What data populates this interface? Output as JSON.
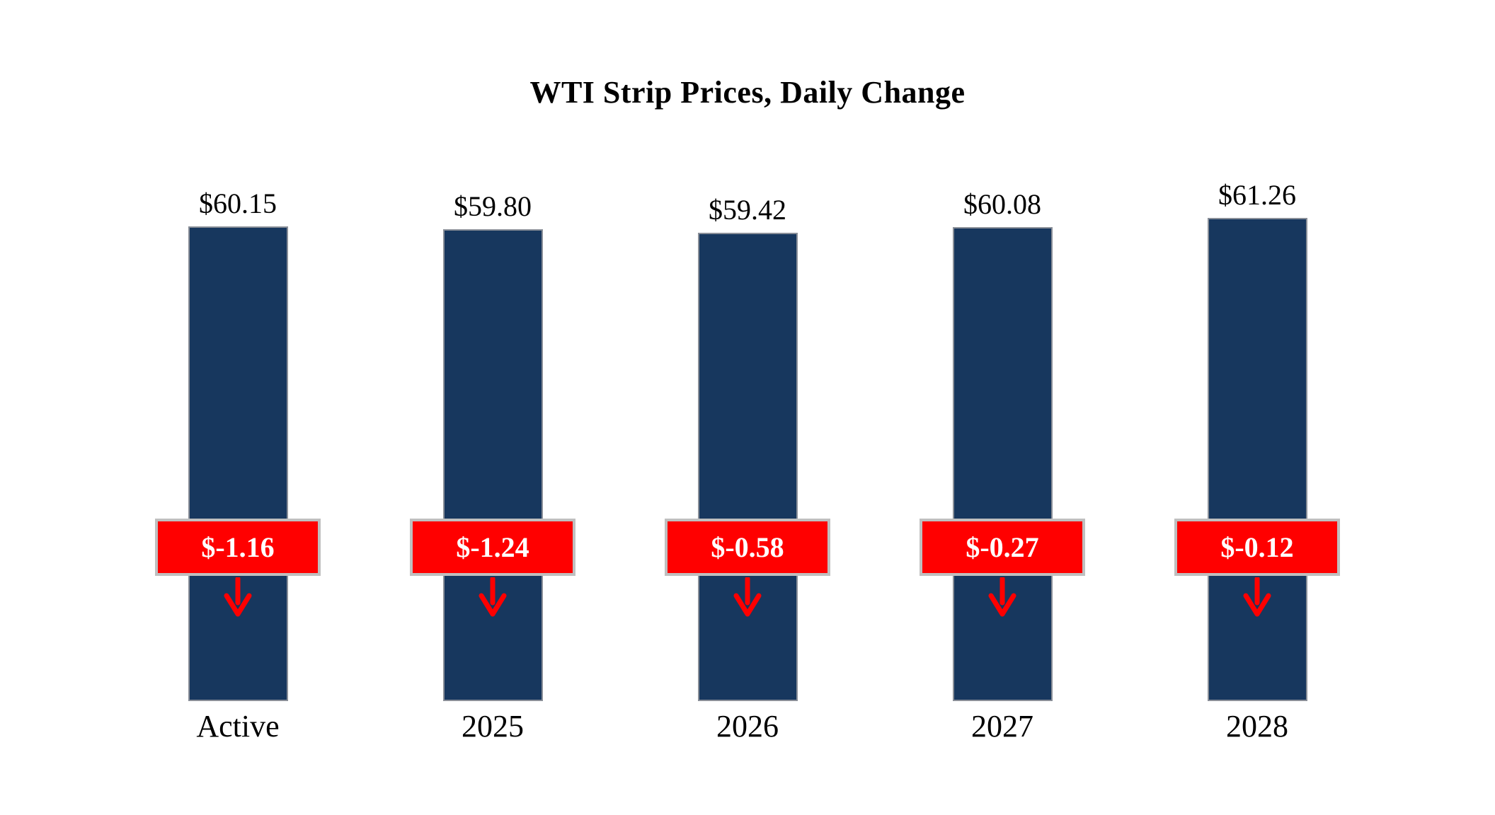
{
  "chart_data": {
    "type": "bar",
    "title": "WTI Strip Prices, Daily Change",
    "categories": [
      "Active",
      "2025",
      "2026",
      "2027",
      "2028"
    ],
    "series": [
      {
        "name": "WTI Strip Price",
        "values": [
          60.15,
          59.8,
          59.42,
          60.08,
          61.26
        ]
      },
      {
        "name": "Daily Change",
        "values": [
          -1.16,
          -1.24,
          -0.58,
          -0.27,
          -0.12
        ]
      }
    ],
    "value_labels": [
      "$60.15",
      "$59.80",
      "$59.42",
      "$60.08",
      "$61.26"
    ],
    "change_labels": [
      "$-1.16",
      "$-1.24",
      "$-0.58",
      "$-0.27",
      "$-0.12"
    ],
    "ylim": [
      0,
      62
    ],
    "grid": false,
    "legend": "none",
    "colors": {
      "bar": "#17375E",
      "bar_border": "#8a8f98",
      "change_box_fill": "#FF0000",
      "change_box_border": "#BFBFBF",
      "change_text": "#FFFFFF",
      "arrow": "#FF0000",
      "text": "#000000",
      "background": "#FFFFFF"
    }
  }
}
